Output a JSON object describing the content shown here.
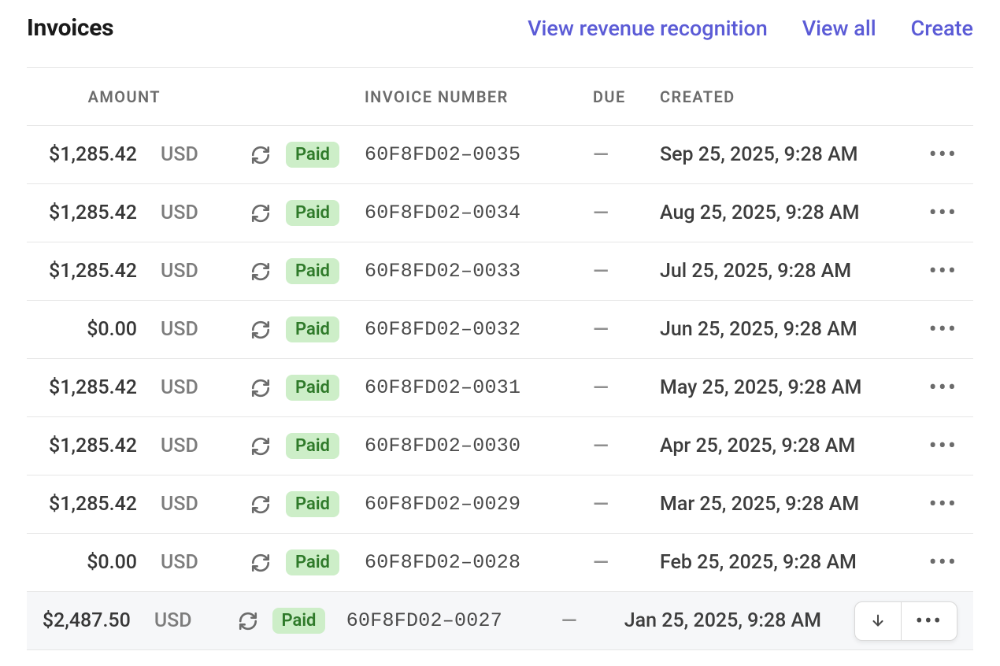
{
  "header": {
    "title": "Invoices",
    "links": {
      "revenue_recognition": "View revenue recognition",
      "view_all": "View all",
      "create": "Create"
    }
  },
  "table": {
    "columns": {
      "amount": "AMOUNT",
      "invoice_number": "INVOICE NUMBER",
      "due": "DUE",
      "created": "CREATED"
    },
    "rows": [
      {
        "amount": "$1,285.42",
        "currency": "USD",
        "recurring": true,
        "status": "Paid",
        "invoice_number": "60F8FD02–0035",
        "due": "—",
        "created": "Sep 25, 2025, 9:28 AM",
        "hover": false
      },
      {
        "amount": "$1,285.42",
        "currency": "USD",
        "recurring": true,
        "status": "Paid",
        "invoice_number": "60F8FD02–0034",
        "due": "—",
        "created": "Aug 25, 2025, 9:28 AM",
        "hover": false
      },
      {
        "amount": "$1,285.42",
        "currency": "USD",
        "recurring": true,
        "status": "Paid",
        "invoice_number": "60F8FD02–0033",
        "due": "—",
        "created": "Jul 25, 2025, 9:28 AM",
        "hover": false
      },
      {
        "amount": "$0.00",
        "currency": "USD",
        "recurring": true,
        "status": "Paid",
        "invoice_number": "60F8FD02–0032",
        "due": "—",
        "created": "Jun 25, 2025, 9:28 AM",
        "hover": false
      },
      {
        "amount": "$1,285.42",
        "currency": "USD",
        "recurring": true,
        "status": "Paid",
        "invoice_number": "60F8FD02–0031",
        "due": "—",
        "created": "May 25, 2025, 9:28 AM",
        "hover": false
      },
      {
        "amount": "$1,285.42",
        "currency": "USD",
        "recurring": true,
        "status": "Paid",
        "invoice_number": "60F8FD02–0030",
        "due": "—",
        "created": "Apr 25, 2025, 9:28 AM",
        "hover": false
      },
      {
        "amount": "$1,285.42",
        "currency": "USD",
        "recurring": true,
        "status": "Paid",
        "invoice_number": "60F8FD02–0029",
        "due": "—",
        "created": "Mar 25, 2025, 9:28 AM",
        "hover": false
      },
      {
        "amount": "$0.00",
        "currency": "USD",
        "recurring": true,
        "status": "Paid",
        "invoice_number": "60F8FD02–0028",
        "due": "—",
        "created": "Feb 25, 2025, 9:28 AM",
        "hover": false
      },
      {
        "amount": "$2,487.50",
        "currency": "USD",
        "recurring": true,
        "status": "Paid",
        "invoice_number": "60F8FD02–0027",
        "due": "—",
        "created": "Jan 25, 2025, 9:28 AM",
        "hover": true
      }
    ]
  },
  "colors": {
    "link": "#5b5bd6",
    "badge_bg": "#cdeec8",
    "badge_text": "#2f7a2a",
    "border": "#e6e6e6",
    "muted": "#7c7c7c",
    "text": "#373737",
    "hover_bg": "#f6f7f9"
  }
}
